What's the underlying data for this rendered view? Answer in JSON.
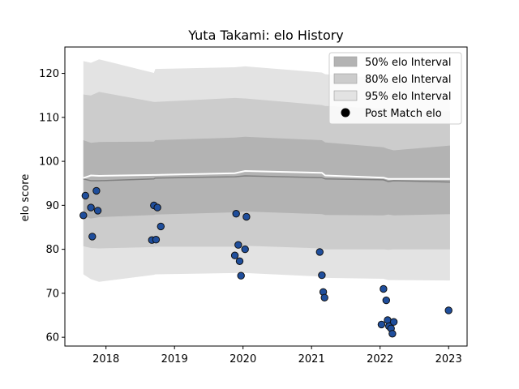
{
  "chart_data": {
    "type": "scatter",
    "title": "Yuta Takami: elo History",
    "xlabel": "",
    "ylabel": "elo score",
    "xlim": [
      2017.4,
      2023.27
    ],
    "ylim": [
      58,
      126
    ],
    "x_ticks": [
      2018,
      2019,
      2020,
      2021,
      2022,
      2023
    ],
    "y_ticks": [
      60,
      70,
      80,
      90,
      100,
      110,
      120
    ],
    "grid": false,
    "legend_position": "top-right",
    "legend": [
      {
        "label": "50% elo Interval",
        "color": "#b3b3b3"
      },
      {
        "label": "80% elo Interval",
        "color": "#cccccc"
      },
      {
        "label": "95% elo Interval",
        "color": "#e3e3e3"
      },
      {
        "label": "Post Match elo",
        "color": "#000000"
      }
    ],
    "colors": {
      "band50": "#b3b3b3",
      "band80": "#cccccc",
      "band95": "#e3e3e3",
      "mean_line": "#808080",
      "white_line": "#ffffff",
      "point_fill": "#1f4e9c",
      "point_edge": "#111111"
    },
    "interval_x": [
      2017.67,
      2017.78,
      2017.9,
      2018.7,
      2018.72,
      2019.88,
      2020.03,
      2021.15,
      2021.2,
      2022.05,
      2022.12,
      2022.2,
      2023.02
    ],
    "mean": [
      96.0,
      95.6,
      95.6,
      96.0,
      96.2,
      96.5,
      96.7,
      96.3,
      96.0,
      95.8,
      95.4,
      95.6,
      95.3
    ],
    "band50_upper": [
      104.8,
      104.2,
      104.4,
      104.5,
      104.8,
      105.4,
      105.6,
      104.8,
      104.3,
      103.2,
      102.8,
      102.5,
      103.6
    ],
    "band50_lower": [
      87.5,
      87.0,
      87.3,
      87.8,
      87.9,
      88.4,
      88.6,
      88.0,
      87.8,
      87.7,
      87.9,
      87.7,
      88.0
    ],
    "band80_upper": [
      115.2,
      115.0,
      115.8,
      113.5,
      113.5,
      114.4,
      114.3,
      112.8,
      112.6,
      112.0,
      111.4,
      111.0,
      111.4
    ],
    "band80_lower": [
      80.7,
      80.3,
      80.2,
      80.5,
      80.6,
      80.6,
      80.8,
      80.2,
      80.0,
      80.0,
      79.9,
      80.0,
      80.0
    ],
    "band95_upper": [
      122.8,
      122.4,
      123.2,
      120.1,
      121.0,
      121.4,
      121.6,
      120.2,
      119.8,
      118.9,
      118.5,
      118.0,
      118.8
    ],
    "band95_lower": [
      74.3,
      73.2,
      72.6,
      74.2,
      74.3,
      74.6,
      74.6,
      73.8,
      73.5,
      73.3,
      73.0,
      73.0,
      72.9
    ],
    "white_line": [
      96.2,
      96.8,
      96.7,
      96.9,
      96.9,
      97.3,
      97.8,
      97.4,
      96.8,
      96.3,
      96.0,
      96.0,
      96.0
    ],
    "points": [
      {
        "x": 2017.67,
        "y": 87.7
      },
      {
        "x": 2017.7,
        "y": 92.2
      },
      {
        "x": 2017.78,
        "y": 89.5
      },
      {
        "x": 2017.8,
        "y": 82.9
      },
      {
        "x": 2017.86,
        "y": 93.3
      },
      {
        "x": 2017.88,
        "y": 88.8
      },
      {
        "x": 2018.67,
        "y": 82.1
      },
      {
        "x": 2018.7,
        "y": 90.0
      },
      {
        "x": 2018.73,
        "y": 82.2
      },
      {
        "x": 2018.75,
        "y": 89.5
      },
      {
        "x": 2018.8,
        "y": 85.2
      },
      {
        "x": 2019.88,
        "y": 78.6
      },
      {
        "x": 2019.9,
        "y": 88.1
      },
      {
        "x": 2019.93,
        "y": 81.0
      },
      {
        "x": 2019.95,
        "y": 77.3
      },
      {
        "x": 2019.97,
        "y": 74.0
      },
      {
        "x": 2020.03,
        "y": 80.0
      },
      {
        "x": 2020.05,
        "y": 87.4
      },
      {
        "x": 2021.12,
        "y": 79.4
      },
      {
        "x": 2021.15,
        "y": 74.1
      },
      {
        "x": 2021.17,
        "y": 70.3
      },
      {
        "x": 2021.19,
        "y": 69.0
      },
      {
        "x": 2022.02,
        "y": 62.9
      },
      {
        "x": 2022.05,
        "y": 71.0
      },
      {
        "x": 2022.09,
        "y": 68.4
      },
      {
        "x": 2022.11,
        "y": 63.9
      },
      {
        "x": 2022.13,
        "y": 62.5
      },
      {
        "x": 2022.16,
        "y": 62.0
      },
      {
        "x": 2022.18,
        "y": 60.8
      },
      {
        "x": 2022.2,
        "y": 63.5
      },
      {
        "x": 2023.0,
        "y": 66.1
      }
    ]
  }
}
